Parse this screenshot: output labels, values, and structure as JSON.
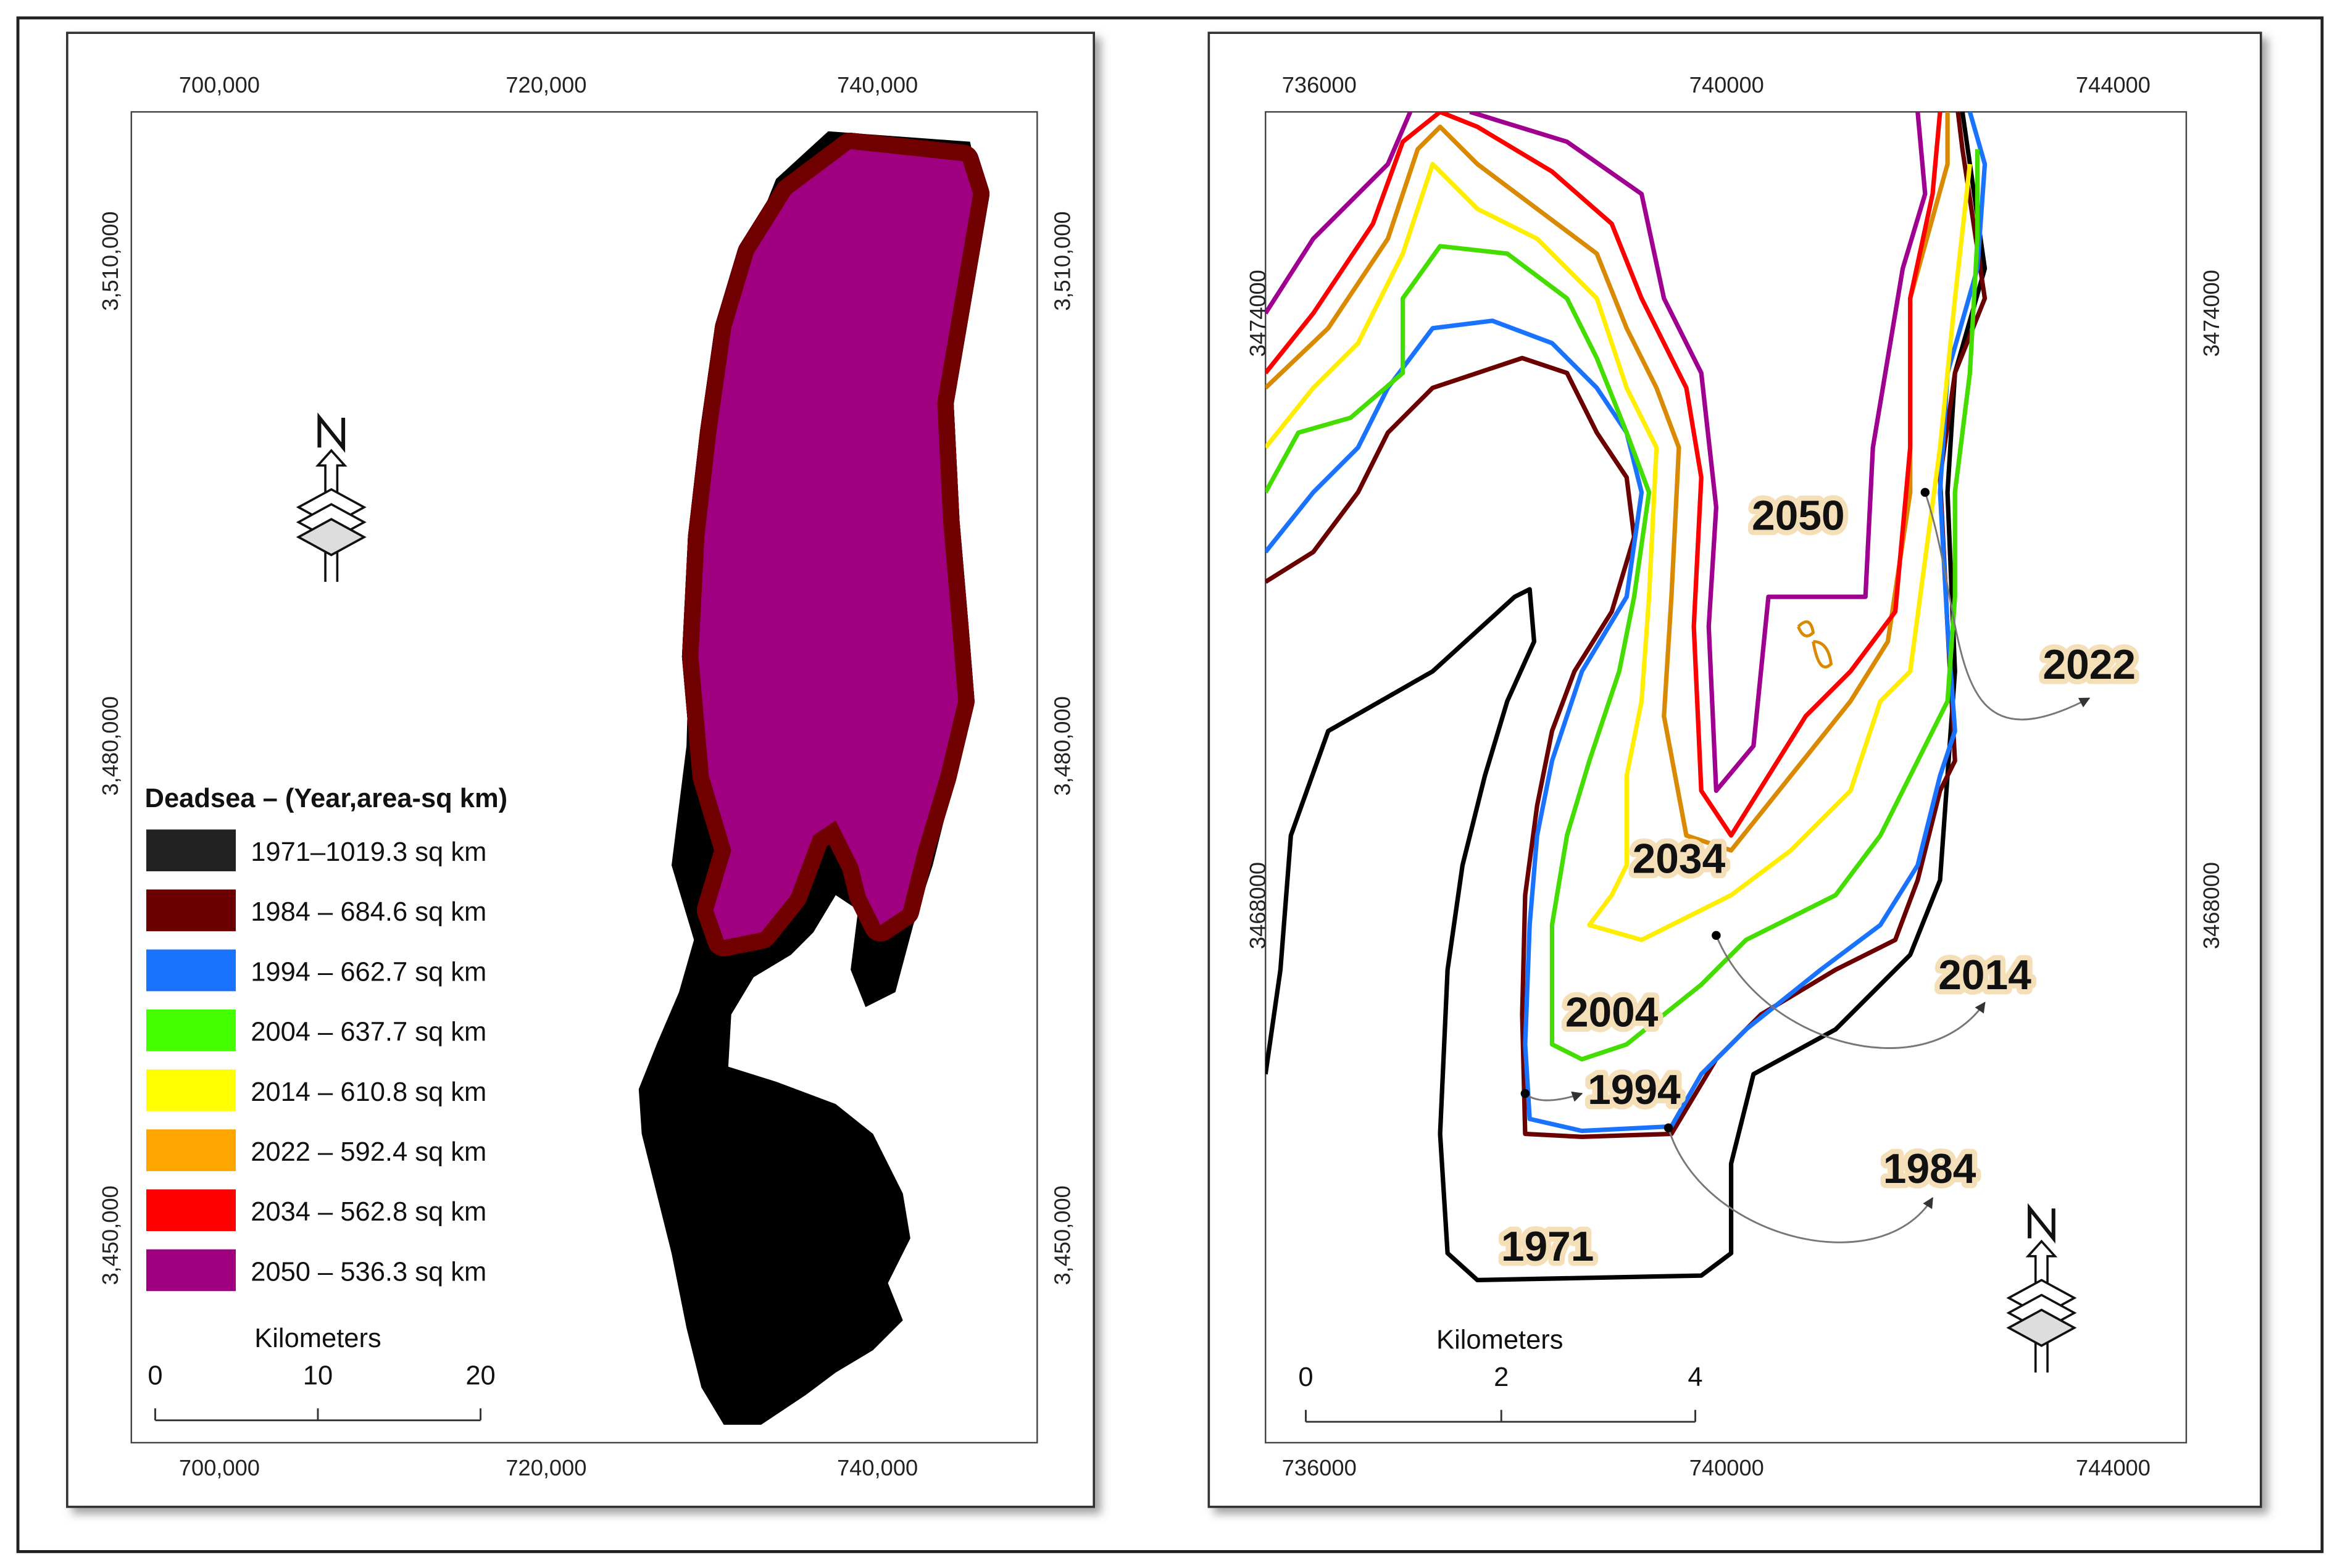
{
  "left_map": {
    "x_ticks": [
      "700,000",
      "720,000",
      "740,000"
    ],
    "y_ticks": [
      "3,510,000",
      "3,480,000",
      "3,450,000"
    ],
    "north": "N",
    "legend": {
      "title": "Deadsea – (Year,area-sq km)",
      "items": [
        "1971–1019.3 sq km",
        "1984 – 684.6 sq km",
        "1994 – 662.7 sq km",
        "2004 – 637.7 sq km",
        "2014 – 610.8 sq km",
        "2022 – 592.4 sq km",
        "2034 – 562.8 sq km",
        "2050 – 536.3 sq km"
      ]
    },
    "scale_bar": {
      "title": "Kilometers",
      "labels": [
        "0",
        "10",
        "20"
      ]
    }
  },
  "right_map": {
    "x_ticks": [
      "736000",
      "740000",
      "744000"
    ],
    "y_ticks": [
      "3474000",
      "3468000"
    ],
    "north": "N",
    "contour_labels": [
      "2050",
      "2022",
      "2034",
      "2014",
      "2004",
      "1994",
      "1984",
      "1971"
    ],
    "scale_bar": {
      "title": "Kilometers",
      "labels": [
        "0",
        "2",
        "4"
      ]
    }
  }
}
